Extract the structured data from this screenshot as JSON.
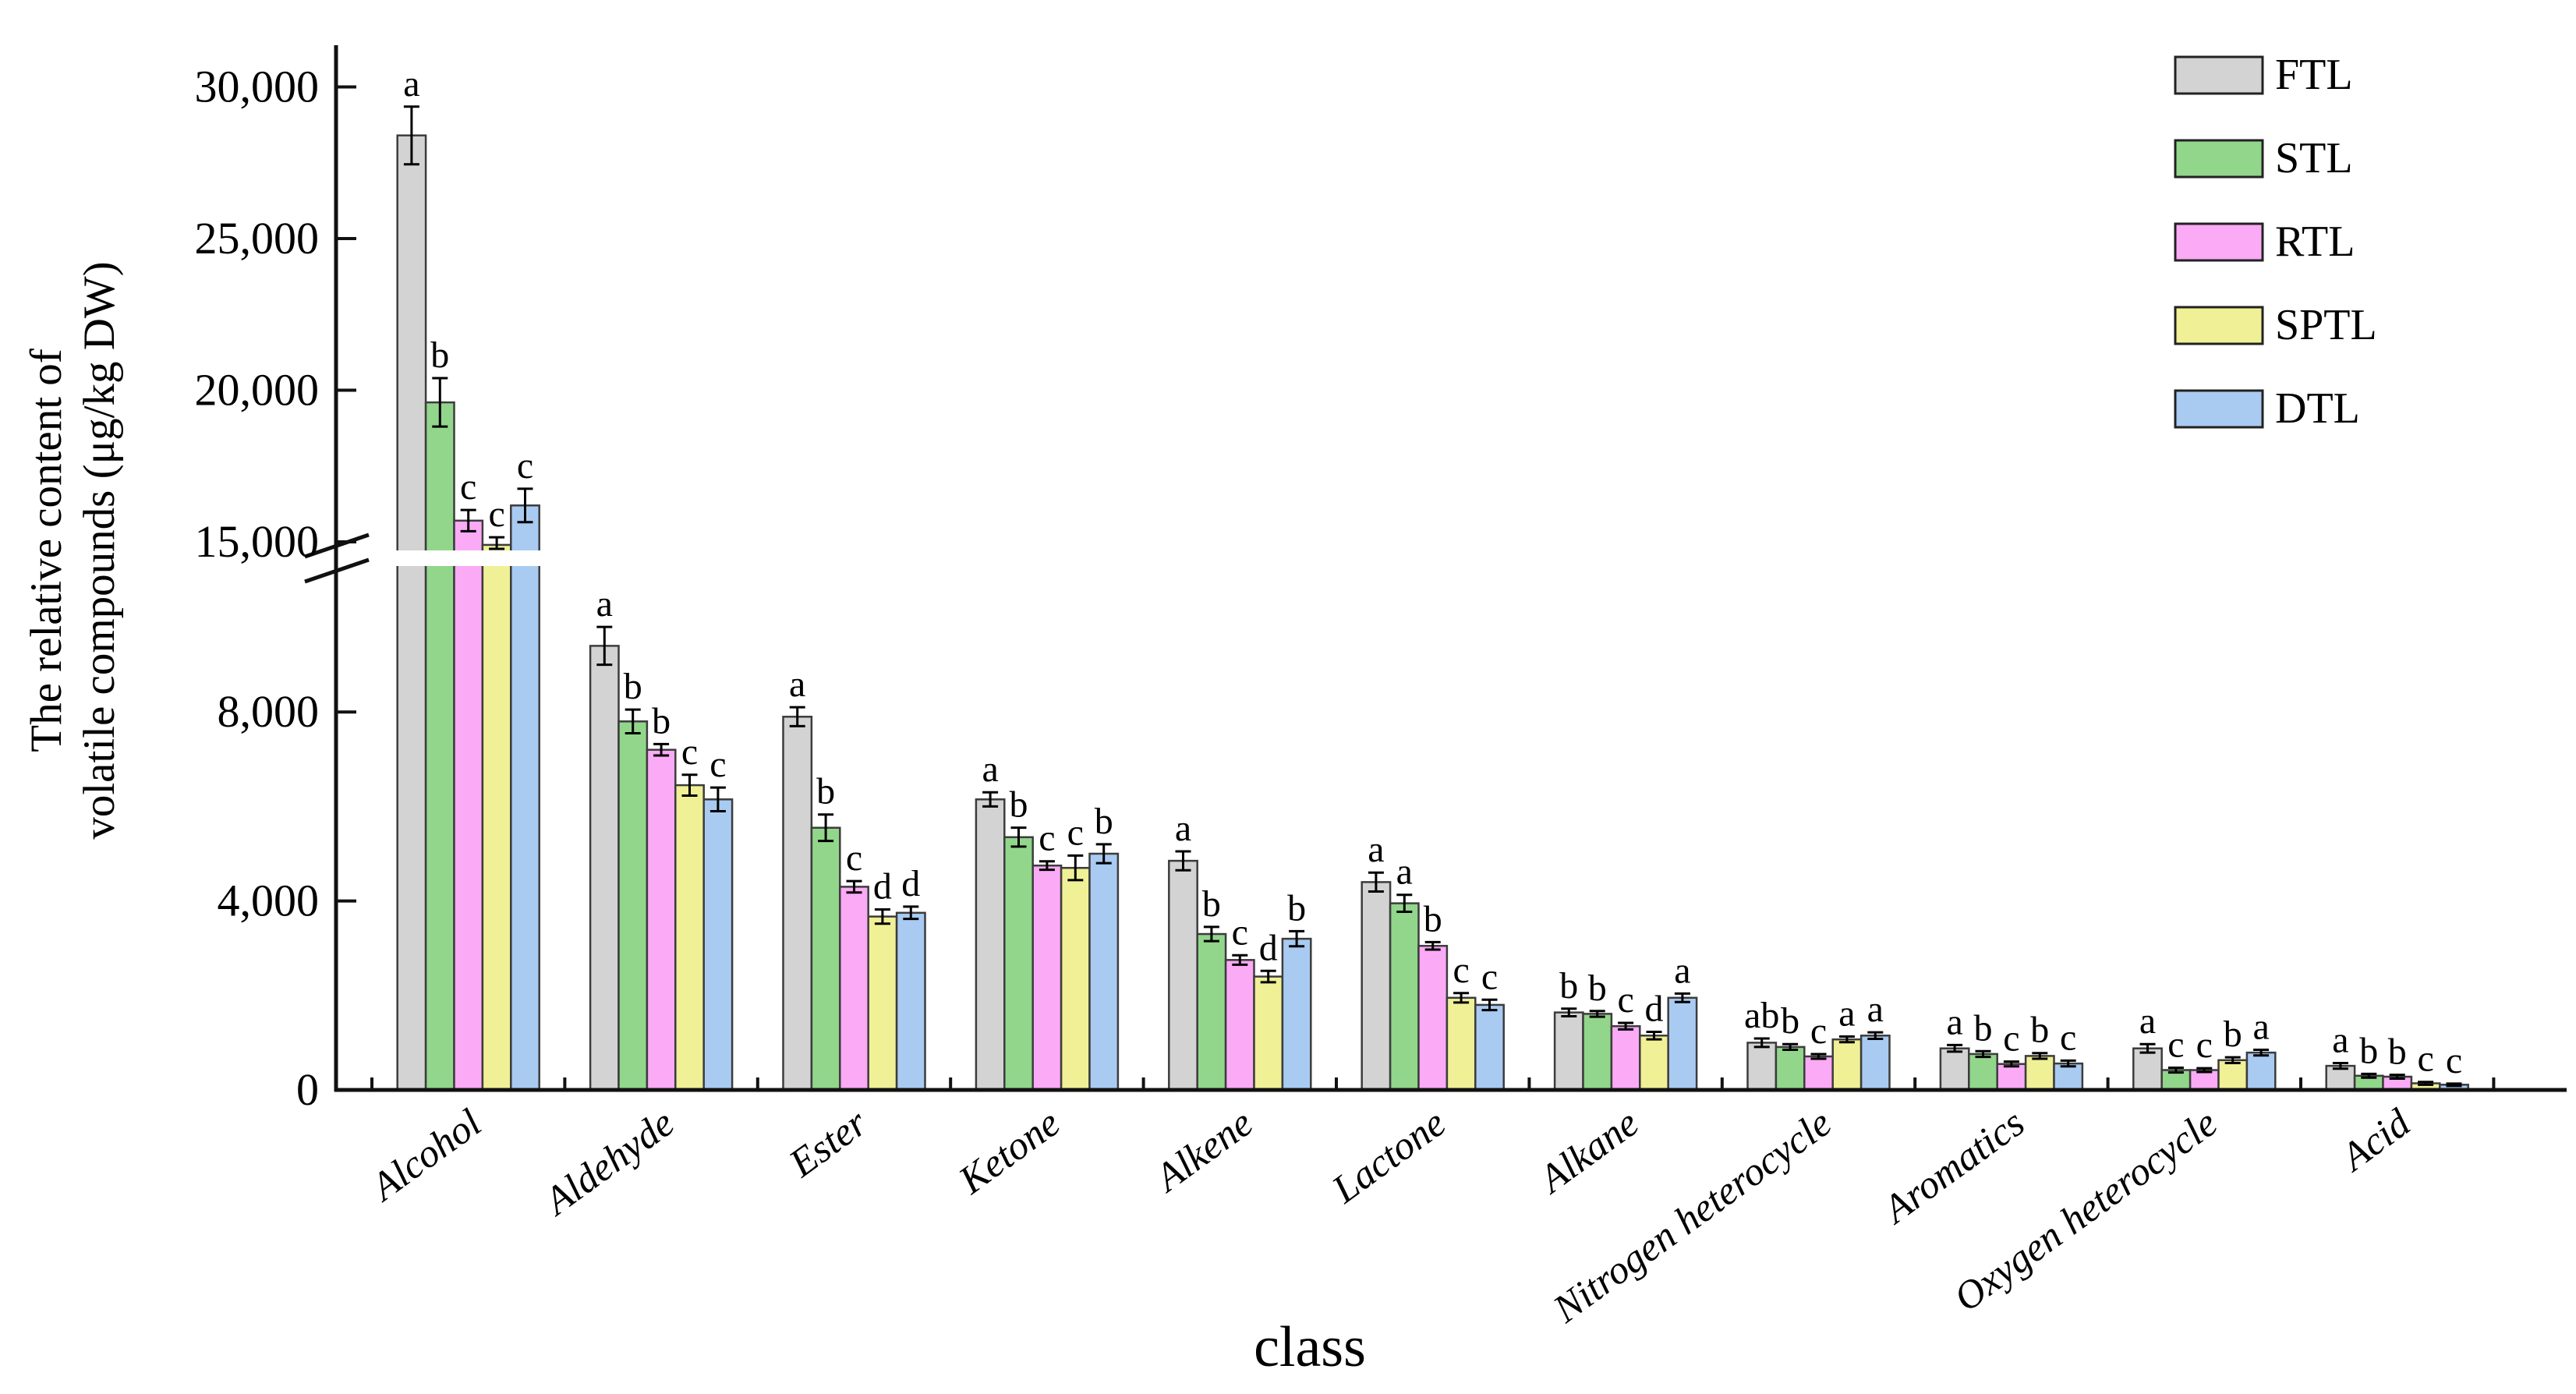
{
  "figure": {
    "ylabel_line1": "The relative content of",
    "ylabel_line2": "volatile compounds (μg/kg DW)",
    "xlabel": "class"
  },
  "axis_text": {
    "upper_tick_labels": [
      "30,000",
      "25,000",
      "20,000",
      "15,000"
    ],
    "lower_tick_labels": [
      "8,000",
      "4,000",
      "0"
    ]
  },
  "legend": {
    "position": "top-right",
    "entries": [
      {
        "label": "FTL",
        "color": "#d3d3d3"
      },
      {
        "label": "STL",
        "color": "#92d68c"
      },
      {
        "label": "RTL",
        "color": "#fbaaf6"
      },
      {
        "label": "SPTL",
        "color": "#f0f096"
      },
      {
        "label": "DTL",
        "color": "#a9cbf2"
      }
    ]
  },
  "chart_data": {
    "type": "bar",
    "title": "",
    "xlabel": "class",
    "ylabel": "The relative content of volatile compounds (μg/kg DW)",
    "grid": false,
    "legend_position": "top-right",
    "axis": {
      "broken": true,
      "break_between": [
        11000,
        14700
      ],
      "lower_ticks": [
        0,
        4000,
        8000
      ],
      "upper_ticks": [
        15000,
        20000,
        25000,
        30000
      ],
      "ylim_lower": [
        0,
        11000
      ],
      "ylim_upper": [
        14700,
        31500
      ]
    },
    "categories": [
      "Alcohol",
      "Aldehyde",
      "Ester",
      "Ketone",
      "Alkene",
      "Lactone",
      "Alkane",
      "Nitrogen heterocycle",
      "Aromatics",
      "Oxygen heterocycle",
      "Acid"
    ],
    "series": [
      {
        "name": "FTL",
        "color": "#d3d3d3",
        "values": [
          28400,
          9400,
          7900,
          6150,
          4850,
          4400,
          1640,
          1000,
          880,
          880,
          510
        ],
        "errors": [
          950,
          400,
          200,
          150,
          200,
          200,
          80,
          90,
          70,
          90,
          60
        ],
        "letters": [
          "a",
          "a",
          "a",
          "a",
          "a",
          "a",
          "b",
          "ab",
          "a",
          "a",
          "a"
        ]
      },
      {
        "name": "STL",
        "color": "#92d68c",
        "values": [
          19600,
          7800,
          5550,
          5350,
          3300,
          3950,
          1610,
          910,
          760,
          420,
          300
        ],
        "errors": [
          800,
          250,
          280,
          200,
          150,
          180,
          60,
          60,
          60,
          50,
          40
        ],
        "letters": [
          "b",
          "b",
          "b",
          "b",
          "b",
          "a",
          "b",
          "b",
          "b",
          "c",
          "b"
        ]
      },
      {
        "name": "RTL",
        "color": "#fbaaf6",
        "values": [
          15700,
          7200,
          4300,
          4750,
          2750,
          3050,
          1350,
          710,
          550,
          420,
          280
        ],
        "errors": [
          350,
          120,
          120,
          90,
          100,
          80,
          70,
          50,
          50,
          40,
          40
        ],
        "letters": [
          "c",
          "b",
          "c",
          "c",
          "c",
          "b",
          "c",
          "c",
          "c",
          "c",
          "b"
        ]
      },
      {
        "name": "SPTL",
        "color": "#f0f096",
        "values": [
          14900,
          6450,
          3670,
          4700,
          2400,
          1950,
          1150,
          1070,
          720,
          630,
          140
        ],
        "errors": [
          250,
          220,
          150,
          260,
          120,
          100,
          80,
          60,
          60,
          60,
          30
        ],
        "letters": [
          "c",
          "c",
          "d",
          "c",
          "d",
          "c",
          "d",
          "a",
          "b",
          "b",
          "c"
        ]
      },
      {
        "name": "DTL",
        "color": "#a9cbf2",
        "values": [
          16200,
          6150,
          3750,
          5000,
          3200,
          1800,
          1950,
          1150,
          560,
          790,
          110
        ],
        "errors": [
          550,
          250,
          130,
          200,
          160,
          110,
          90,
          70,
          60,
          60,
          25
        ],
        "letters": [
          "c",
          "c",
          "d",
          "b",
          "b",
          "c",
          "a",
          "a",
          "c",
          "a",
          "c"
        ]
      }
    ]
  }
}
